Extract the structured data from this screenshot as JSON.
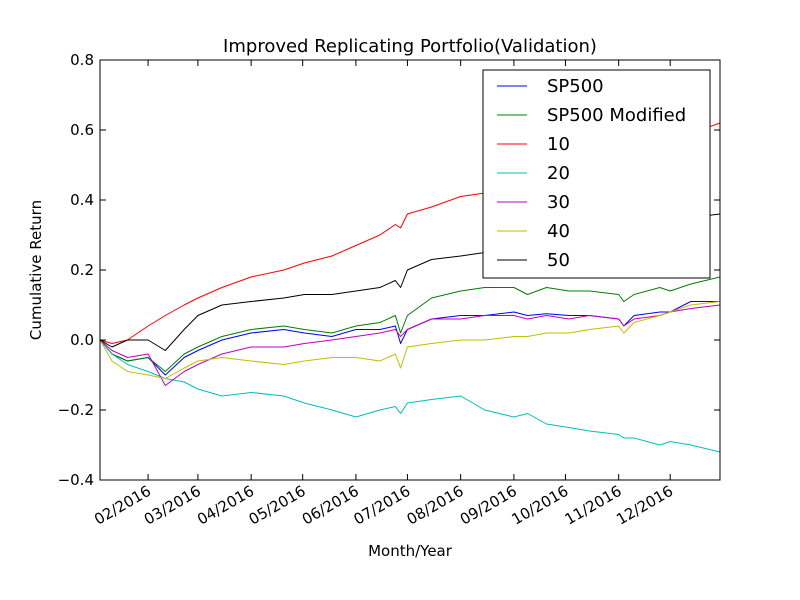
{
  "chart_data": {
    "type": "line",
    "title": "Improved Replicating Portfolio(Validation)",
    "xlabel": "Month/Year",
    "ylabel": "Cumulative Return",
    "xlim": [
      "2016-01-04",
      "2016-12-30"
    ],
    "ylim": [
      -0.4,
      0.8
    ],
    "yticks": [
      -0.4,
      -0.2,
      0.0,
      0.2,
      0.4,
      0.6,
      0.8
    ],
    "ytick_labels": [
      "−0.4",
      "−0.2",
      "0.0",
      "0.2",
      "0.4",
      "0.6",
      "0.8"
    ],
    "xticks": [
      "2016-02-01",
      "2016-03-01",
      "2016-04-01",
      "2016-05-01",
      "2016-06-01",
      "2016-07-01",
      "2016-08-01",
      "2016-09-01",
      "2016-10-01",
      "2016-11-01",
      "2016-12-01"
    ],
    "xtick_labels": [
      "02/2016",
      "03/2016",
      "04/2016",
      "05/2016",
      "06/2016",
      "07/2016",
      "08/2016",
      "09/2016",
      "10/2016",
      "11/2016",
      "12/2016"
    ],
    "grid": false,
    "legend_position": "top-right",
    "series": [
      {
        "name": "SP500",
        "color": "#0000ff",
        "x": [
          "2016-01-04",
          "2016-01-11",
          "2016-01-20",
          "2016-02-01",
          "2016-02-11",
          "2016-02-22",
          "2016-03-01",
          "2016-03-15",
          "2016-04-01",
          "2016-04-20",
          "2016-05-02",
          "2016-05-18",
          "2016-06-01",
          "2016-06-15",
          "2016-06-24",
          "2016-06-27",
          "2016-07-01",
          "2016-07-15",
          "2016-08-01",
          "2016-08-15",
          "2016-09-01",
          "2016-09-09",
          "2016-09-20",
          "2016-10-03",
          "2016-10-15",
          "2016-11-01",
          "2016-11-04",
          "2016-11-10",
          "2016-11-25",
          "2016-12-01",
          "2016-12-13",
          "2016-12-30"
        ],
        "y": [
          0.0,
          -0.04,
          -0.06,
          -0.05,
          -0.1,
          -0.05,
          -0.03,
          0.0,
          0.02,
          0.03,
          0.02,
          0.01,
          0.03,
          0.03,
          0.04,
          -0.01,
          0.03,
          0.06,
          0.07,
          0.07,
          0.08,
          0.07,
          0.075,
          0.07,
          0.07,
          0.06,
          0.04,
          0.07,
          0.08,
          0.08,
          0.11,
          0.11
        ]
      },
      {
        "name": "SP500 Modified",
        "color": "#008000",
        "x": [
          "2016-01-04",
          "2016-01-11",
          "2016-01-20",
          "2016-02-01",
          "2016-02-11",
          "2016-02-22",
          "2016-03-01",
          "2016-03-15",
          "2016-04-01",
          "2016-04-20",
          "2016-05-02",
          "2016-05-18",
          "2016-06-01",
          "2016-06-15",
          "2016-06-24",
          "2016-06-27",
          "2016-07-01",
          "2016-07-15",
          "2016-08-01",
          "2016-08-15",
          "2016-09-01",
          "2016-09-09",
          "2016-09-20",
          "2016-10-03",
          "2016-10-15",
          "2016-11-01",
          "2016-11-04",
          "2016-11-10",
          "2016-11-25",
          "2016-12-01",
          "2016-12-13",
          "2016-12-30"
        ],
        "y": [
          0.0,
          -0.04,
          -0.06,
          -0.05,
          -0.09,
          -0.04,
          -0.02,
          0.01,
          0.03,
          0.04,
          0.03,
          0.02,
          0.04,
          0.05,
          0.07,
          0.02,
          0.07,
          0.12,
          0.14,
          0.15,
          0.15,
          0.13,
          0.15,
          0.14,
          0.14,
          0.13,
          0.11,
          0.13,
          0.15,
          0.14,
          0.16,
          0.18
        ]
      },
      {
        "name": "10",
        "color": "#ff0000",
        "x": [
          "2016-01-04",
          "2016-01-11",
          "2016-01-20",
          "2016-02-01",
          "2016-02-11",
          "2016-02-22",
          "2016-03-01",
          "2016-03-15",
          "2016-04-01",
          "2016-04-20",
          "2016-05-02",
          "2016-05-18",
          "2016-06-01",
          "2016-06-15",
          "2016-06-24",
          "2016-06-27",
          "2016-07-01",
          "2016-07-15",
          "2016-08-01",
          "2016-08-15",
          "2016-09-01",
          "2016-09-09",
          "2016-09-20",
          "2016-10-03",
          "2016-10-15",
          "2016-11-01",
          "2016-11-04",
          "2016-11-10",
          "2016-11-25",
          "2016-12-01",
          "2016-12-13",
          "2016-12-30"
        ],
        "y": [
          0.0,
          -0.01,
          0.0,
          0.04,
          0.07,
          0.1,
          0.12,
          0.15,
          0.18,
          0.2,
          0.22,
          0.24,
          0.27,
          0.3,
          0.33,
          0.32,
          0.36,
          0.38,
          0.41,
          0.42,
          0.44,
          0.42,
          0.45,
          0.46,
          0.48,
          0.5,
          0.49,
          0.52,
          0.55,
          0.57,
          0.59,
          0.62
        ]
      },
      {
        "name": "20",
        "color": "#00bfbf",
        "x": [
          "2016-01-04",
          "2016-01-11",
          "2016-01-20",
          "2016-02-01",
          "2016-02-11",
          "2016-02-22",
          "2016-03-01",
          "2016-03-15",
          "2016-04-01",
          "2016-04-20",
          "2016-05-02",
          "2016-05-18",
          "2016-06-01",
          "2016-06-15",
          "2016-06-24",
          "2016-06-27",
          "2016-07-01",
          "2016-07-15",
          "2016-08-01",
          "2016-08-15",
          "2016-09-01",
          "2016-09-09",
          "2016-09-20",
          "2016-10-03",
          "2016-10-15",
          "2016-11-01",
          "2016-11-04",
          "2016-11-10",
          "2016-11-25",
          "2016-12-01",
          "2016-12-13",
          "2016-12-30"
        ],
        "y": [
          0.0,
          -0.04,
          -0.07,
          -0.09,
          -0.11,
          -0.12,
          -0.14,
          -0.16,
          -0.15,
          -0.16,
          -0.18,
          -0.2,
          -0.22,
          -0.2,
          -0.19,
          -0.21,
          -0.18,
          -0.17,
          -0.16,
          -0.2,
          -0.22,
          -0.21,
          -0.24,
          -0.25,
          -0.26,
          -0.27,
          -0.28,
          -0.28,
          -0.3,
          -0.29,
          -0.3,
          -0.32
        ]
      },
      {
        "name": "30",
        "color": "#bf00bf",
        "x": [
          "2016-01-04",
          "2016-01-11",
          "2016-01-20",
          "2016-02-01",
          "2016-02-11",
          "2016-02-22",
          "2016-03-01",
          "2016-03-15",
          "2016-04-01",
          "2016-04-20",
          "2016-05-02",
          "2016-05-18",
          "2016-06-01",
          "2016-06-15",
          "2016-06-24",
          "2016-06-27",
          "2016-07-01",
          "2016-07-15",
          "2016-08-01",
          "2016-08-15",
          "2016-09-01",
          "2016-09-09",
          "2016-09-20",
          "2016-10-03",
          "2016-10-15",
          "2016-11-01",
          "2016-11-04",
          "2016-11-10",
          "2016-11-25",
          "2016-12-01",
          "2016-12-13",
          "2016-12-30"
        ],
        "y": [
          0.0,
          -0.03,
          -0.05,
          -0.04,
          -0.13,
          -0.09,
          -0.07,
          -0.04,
          -0.02,
          -0.02,
          -0.01,
          0.0,
          0.01,
          0.02,
          0.03,
          0.01,
          0.03,
          0.06,
          0.06,
          0.07,
          0.07,
          0.06,
          0.07,
          0.06,
          0.07,
          0.06,
          0.04,
          0.06,
          0.07,
          0.08,
          0.09,
          0.1
        ]
      },
      {
        "name": "40",
        "color": "#bfbf00",
        "x": [
          "2016-01-04",
          "2016-01-11",
          "2016-01-20",
          "2016-02-01",
          "2016-02-11",
          "2016-02-22",
          "2016-03-01",
          "2016-03-15",
          "2016-04-01",
          "2016-04-20",
          "2016-05-02",
          "2016-05-18",
          "2016-06-01",
          "2016-06-15",
          "2016-06-24",
          "2016-06-27",
          "2016-07-01",
          "2016-07-15",
          "2016-08-01",
          "2016-08-15",
          "2016-09-01",
          "2016-09-09",
          "2016-09-20",
          "2016-10-03",
          "2016-10-15",
          "2016-11-01",
          "2016-11-04",
          "2016-11-10",
          "2016-11-25",
          "2016-12-01",
          "2016-12-13",
          "2016-12-30"
        ],
        "y": [
          0.0,
          -0.06,
          -0.09,
          -0.1,
          -0.11,
          -0.08,
          -0.06,
          -0.05,
          -0.06,
          -0.07,
          -0.06,
          -0.05,
          -0.05,
          -0.06,
          -0.04,
          -0.08,
          -0.02,
          -0.01,
          0.0,
          0.0,
          0.01,
          0.01,
          0.02,
          0.02,
          0.03,
          0.04,
          0.02,
          0.05,
          0.07,
          0.08,
          0.1,
          0.11
        ]
      },
      {
        "name": "50",
        "color": "#000000",
        "x": [
          "2016-01-04",
          "2016-01-11",
          "2016-01-20",
          "2016-02-01",
          "2016-02-11",
          "2016-02-22",
          "2016-03-01",
          "2016-03-15",
          "2016-04-01",
          "2016-04-20",
          "2016-05-02",
          "2016-05-18",
          "2016-06-01",
          "2016-06-15",
          "2016-06-24",
          "2016-06-27",
          "2016-07-01",
          "2016-07-15",
          "2016-08-01",
          "2016-08-15",
          "2016-09-01",
          "2016-09-09",
          "2016-09-20",
          "2016-10-03",
          "2016-10-15",
          "2016-11-01",
          "2016-11-04",
          "2016-11-10",
          "2016-11-25",
          "2016-12-01",
          "2016-12-13",
          "2016-12-30"
        ],
        "y": [
          0.0,
          -0.02,
          0.0,
          0.0,
          -0.03,
          0.03,
          0.07,
          0.1,
          0.11,
          0.12,
          0.13,
          0.13,
          0.14,
          0.15,
          0.17,
          0.15,
          0.2,
          0.23,
          0.24,
          0.25,
          0.26,
          0.24,
          0.27,
          0.27,
          0.28,
          0.29,
          0.27,
          0.3,
          0.32,
          0.33,
          0.35,
          0.36
        ]
      }
    ]
  }
}
